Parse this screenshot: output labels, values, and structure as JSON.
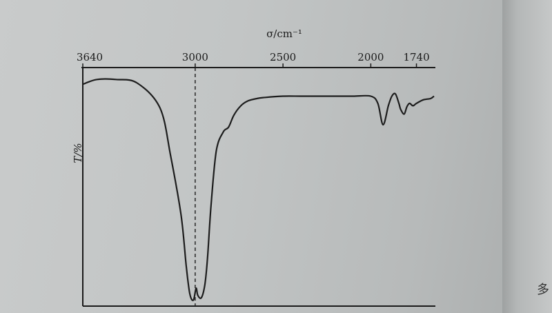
{
  "page_mark": "多",
  "chart_data": {
    "type": "line",
    "title": "",
    "xlabel": "σ/cm⁻¹",
    "ylabel": "T/%",
    "x_reversed": true,
    "xlim": [
      3640,
      1640
    ],
    "ylim": [
      0,
      100
    ],
    "grid": false,
    "x_ticks": [
      {
        "value": 3640,
        "label": "3640"
      },
      {
        "value": 3000,
        "label": "3000"
      },
      {
        "value": 2500,
        "label": "2500"
      },
      {
        "value": 2000,
        "label": "2000"
      },
      {
        "value": 1740,
        "label": "1740"
      }
    ],
    "reference_line": {
      "x": 3000,
      "style": "dashed"
    },
    "series": [
      {
        "x": [
          3640,
          3560,
          3450,
          3330,
          3200,
          3140,
          3080,
          3050,
          3030,
          3010,
          2995,
          2985,
          2965,
          2945,
          2930,
          2910,
          2880,
          2840,
          2810,
          2780,
          2740,
          2700,
          2650,
          2600,
          2500,
          2400,
          2300,
          2200,
          2100,
          2000,
          1960,
          1930,
          1900,
          1880,
          1860,
          1840,
          1830,
          1810,
          1795,
          1780,
          1760,
          1740,
          1700,
          1660,
          1640
        ],
        "y": [
          93,
          95,
          95,
          93.5,
          83,
          63,
          38,
          16,
          5,
          2.5,
          7.5,
          4.5,
          3.5,
          9,
          20,
          42,
          65,
          73,
          75,
          80,
          84,
          86,
          87,
          87.5,
          88,
          88,
          88,
          88,
          88,
          88,
          85,
          76,
          84,
          88,
          89,
          85,
          82.5,
          80.5,
          83.5,
          85,
          84,
          85,
          86.5,
          87,
          88
        ]
      }
    ]
  }
}
